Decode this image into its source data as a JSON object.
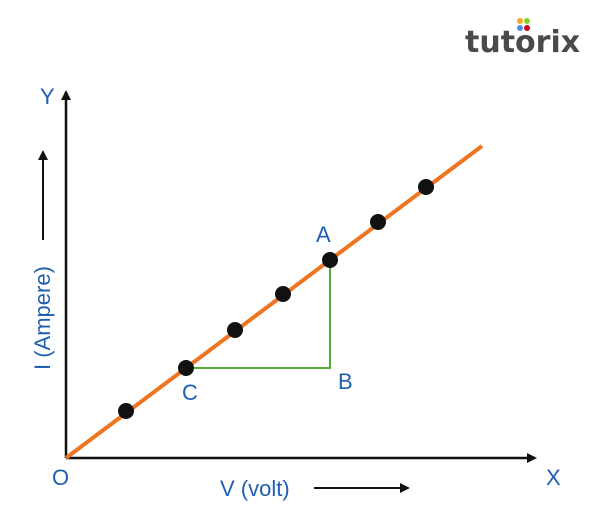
{
  "logo": {
    "text": "tutorix",
    "text_color": "#4a4a4a",
    "dot_colors": [
      "#f5a623",
      "#7ed321",
      "#4a90e2",
      "#d0021b"
    ]
  },
  "axes": {
    "origin_label": "O",
    "x_axis_label": "X",
    "y_axis_label": "Y",
    "x_quantity_label": "V (volt)",
    "y_quantity_label": "I (Ampere)"
  },
  "points": {
    "a_label": "A",
    "b_label": "B",
    "c_label": "C"
  },
  "colors": {
    "line": "#f07321",
    "triangle": "#55aa33",
    "label": "#1f5fb0",
    "axis": "#111111",
    "dot": "#111111"
  }
}
